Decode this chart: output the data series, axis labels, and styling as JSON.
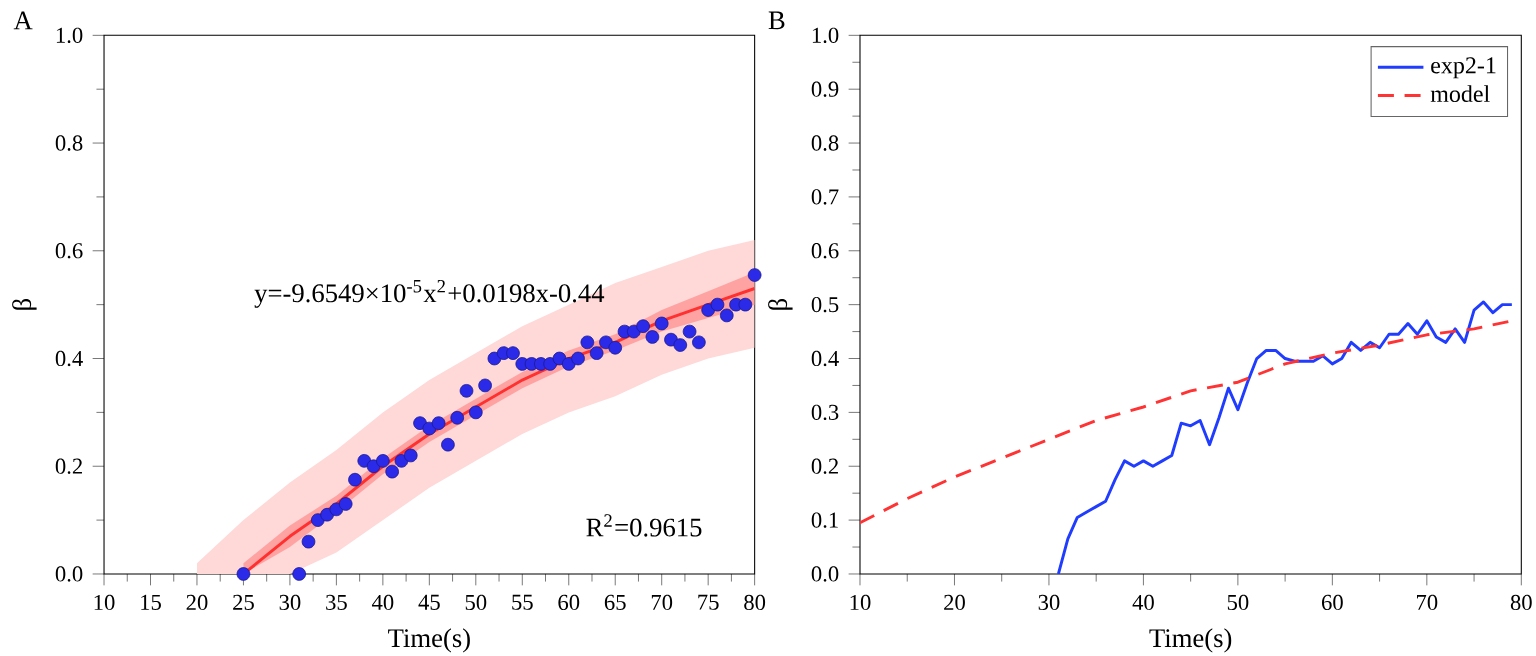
{
  "chart_data": [
    {
      "type": "scatter",
      "title": "A",
      "xlabel": "Time(s)",
      "ylabel": "β",
      "xlim": [
        10,
        80
      ],
      "xticks": [
        10,
        15,
        20,
        25,
        30,
        35,
        40,
        45,
        50,
        55,
        60,
        65,
        70,
        75,
        80
      ],
      "ylim": [
        0,
        1
      ],
      "yticks": [
        {
          "value": 0,
          "label": "0.0"
        },
        {
          "value": 0.2,
          "label": "0.2"
        },
        {
          "value": 0.4,
          "label": "0.4"
        },
        {
          "value": 0.6,
          "label": "0.6"
        },
        {
          "value": 0.8,
          "label": "0.8"
        },
        {
          "value": 1,
          "label": "1.0"
        }
      ],
      "annotations": [
        "y=-9.6549×10$^{-5}$x$^{2}$+0.0198x-0.44",
        "R$^{2}$=0.9615"
      ],
      "series": [
        {
          "type": "line",
          "color": "#ffd8d8",
          "x": [
            20,
            25,
            30,
            35,
            40,
            45,
            50,
            55,
            60,
            65,
            70,
            75,
            80
          ],
          "values": [
            null,
            null,
            null,
            null,
            null,
            null,
            null,
            null,
            null,
            null,
            null,
            null,
            null
          ],
          "upper": [
            0.02,
            0.1,
            0.17,
            0.23,
            0.3,
            0.36,
            0.41,
            0.46,
            0.5,
            0.54,
            0.57,
            0.6,
            0.62
          ],
          "lower": [
            0,
            0,
            0,
            0.04,
            0.1,
            0.16,
            0.21,
            0.26,
            0.3,
            0.33,
            0.37,
            0.4,
            0.42
          ]
        },
        {
          "type": "line",
          "color": "#ff3030",
          "x": [
            25,
            30,
            35,
            40,
            45,
            50,
            55,
            60,
            65,
            70,
            75,
            80
          ],
          "values": [
            0.0,
            0.07,
            0.13,
            0.2,
            0.26,
            0.31,
            0.36,
            0.4,
            0.43,
            0.47,
            0.5,
            0.53
          ],
          "lower": [
            0,
            0.05,
            0.115,
            0.185,
            0.245,
            0.295,
            0.345,
            0.385,
            0.415,
            0.45,
            0.475,
            0.5
          ],
          "upper": [
            0.02,
            0.09,
            0.145,
            0.215,
            0.275,
            0.325,
            0.375,
            0.415,
            0.445,
            0.49,
            0.525,
            0.56
          ]
        },
        {
          "type": "scatter",
          "color": "#2a2ae8",
          "marker": "circle",
          "x": [
            25,
            31,
            32,
            33,
            34,
            35,
            36,
            37,
            38,
            39,
            40,
            41,
            42,
            43,
            44,
            45,
            46,
            47,
            48,
            49,
            50,
            51,
            52,
            53,
            54,
            55,
            56,
            57,
            58,
            59,
            60,
            61,
            62,
            63,
            64,
            65,
            66,
            67,
            68,
            69,
            70,
            71,
            72,
            73,
            74,
            75,
            76,
            77,
            78,
            79,
            80
          ],
          "values": [
            0.0,
            0.0,
            0.06,
            0.1,
            0.11,
            0.12,
            0.13,
            0.175,
            0.21,
            0.2,
            0.21,
            0.19,
            0.21,
            0.22,
            0.28,
            0.27,
            0.28,
            0.24,
            0.29,
            0.34,
            0.3,
            0.35,
            0.4,
            0.41,
            0.41,
            0.39,
            0.39,
            0.39,
            0.39,
            0.4,
            0.39,
            0.4,
            0.43,
            0.41,
            0.43,
            0.42,
            0.45,
            0.45,
            0.46,
            0.44,
            0.465,
            0.435,
            0.425,
            0.45,
            0.43,
            0.49,
            0.5,
            0.48,
            0.5,
            0.5,
            0.555
          ]
        }
      ]
    },
    {
      "type": "line",
      "title": "B",
      "xlabel": "Time(s)",
      "ylabel": "β",
      "legend": "top right",
      "xlim": [
        10,
        80
      ],
      "xticks": [
        10,
        20,
        30,
        40,
        50,
        60,
        70,
        80
      ],
      "ylim": [
        0,
        1
      ],
      "yticks": [
        {
          "value": 0,
          "label": "0.0"
        },
        {
          "value": 0.1,
          "label": "0.1"
        },
        {
          "value": 0.2,
          "label": "0.2"
        },
        {
          "value": 0.3,
          "label": "0.3"
        },
        {
          "value": 0.4,
          "label": "0.4"
        },
        {
          "value": 0.5,
          "label": "0.5"
        },
        {
          "value": 0.6,
          "label": "0.6"
        },
        {
          "value": 0.7,
          "label": "0.7"
        },
        {
          "value": 0.8,
          "label": "0.8"
        },
        {
          "value": 0.9,
          "label": "0.9"
        },
        {
          "value": 1,
          "label": "1.0"
        }
      ],
      "series": [
        {
          "name": "exp2-1",
          "color": "#1f3cff",
          "line_style": "solid",
          "x": [
            31,
            32,
            33,
            34,
            35,
            36,
            37,
            38,
            39,
            40,
            41,
            42,
            43,
            44,
            45,
            46,
            47,
            48,
            49,
            50,
            51,
            52,
            53,
            54,
            55,
            56,
            57,
            58,
            59,
            60,
            61,
            62,
            63,
            64,
            65,
            66,
            67,
            68,
            69,
            70,
            71,
            72,
            73,
            74,
            75,
            76,
            77,
            78,
            79
          ],
          "values": [
            0.0,
            0.065,
            0.105,
            0.115,
            0.125,
            0.135,
            0.175,
            0.21,
            0.2,
            0.21,
            0.2,
            0.21,
            0.22,
            0.28,
            0.275,
            0.285,
            0.24,
            0.29,
            0.345,
            0.305,
            0.355,
            0.4,
            0.415,
            0.415,
            0.4,
            0.395,
            0.395,
            0.395,
            0.405,
            0.39,
            0.4,
            0.43,
            0.415,
            0.43,
            0.42,
            0.445,
            0.445,
            0.465,
            0.445,
            0.47,
            0.44,
            0.43,
            0.455,
            0.43,
            0.49,
            0.505,
            0.485,
            0.5,
            0.5
          ]
        },
        {
          "name": "model",
          "color": "#ff3333",
          "line_style": "dashed",
          "x": [
            10,
            15,
            20,
            25,
            30,
            35,
            40,
            45,
            50,
            55,
            60,
            65,
            70,
            75,
            79
          ],
          "values": [
            0.095,
            0.14,
            0.18,
            0.215,
            0.25,
            0.285,
            0.31,
            0.34,
            0.356,
            0.39,
            0.41,
            0.425,
            0.444,
            0.455,
            0.47
          ]
        }
      ]
    }
  ]
}
